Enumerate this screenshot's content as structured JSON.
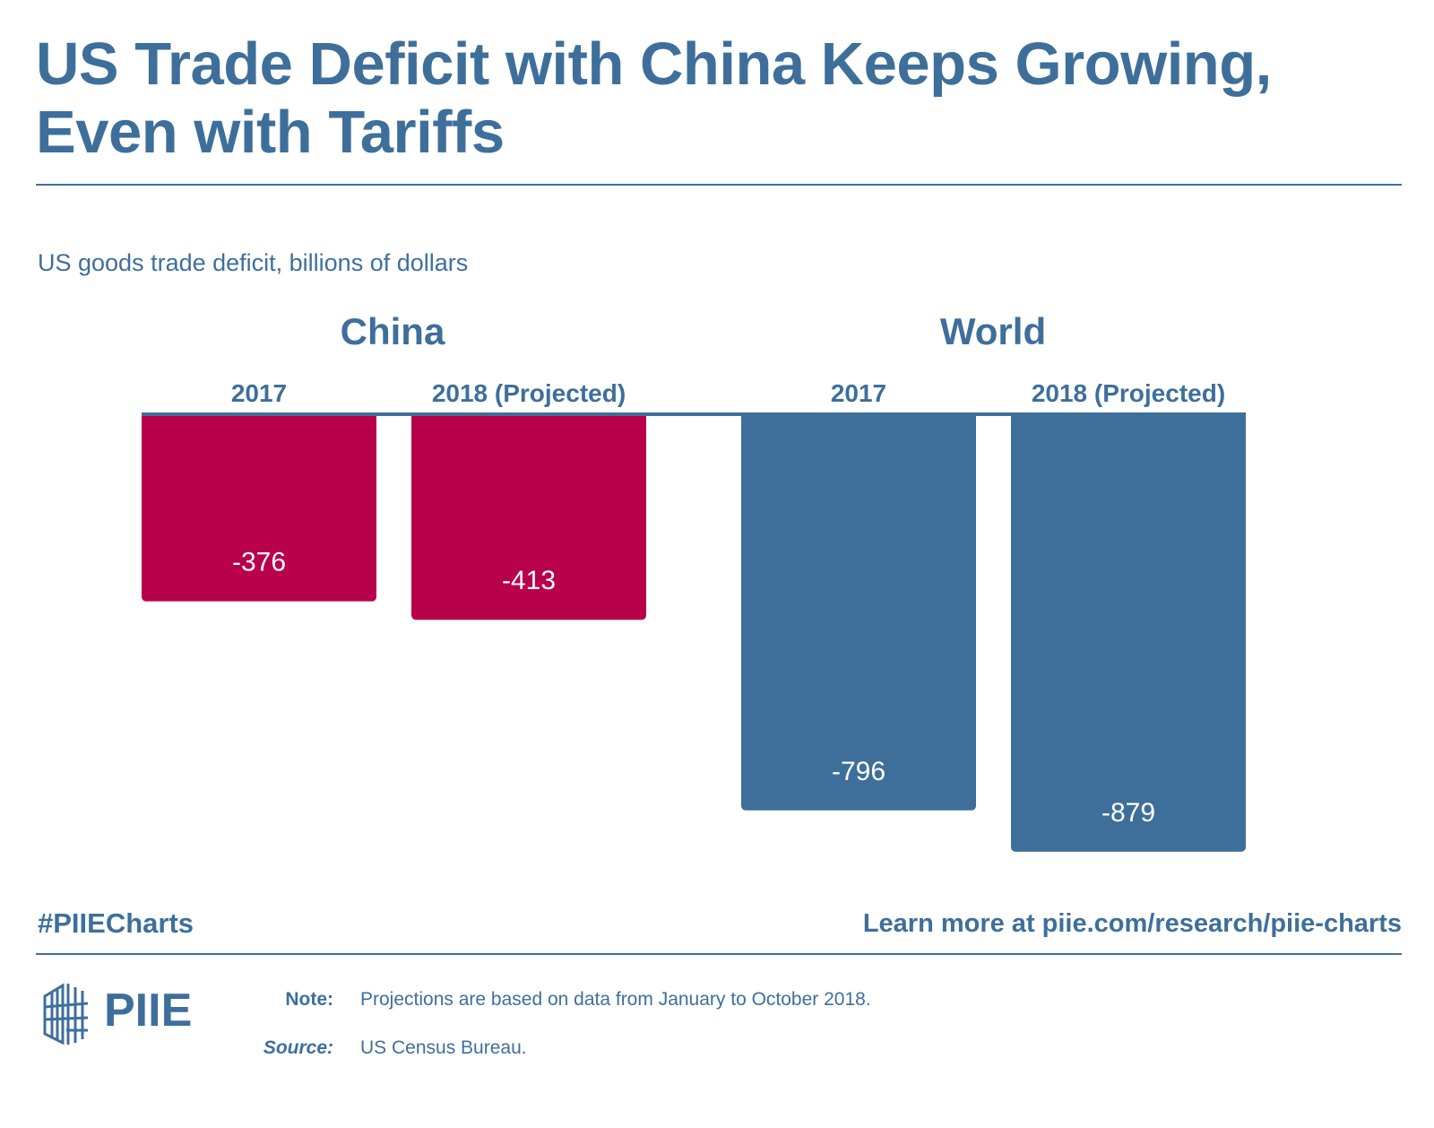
{
  "header": {
    "title": "US Trade Deficit with China Keeps Growing, Even with Tariffs"
  },
  "colors": {
    "primary_blue": "#3e6f9b",
    "china_red": "#b8004b",
    "label_white": "#ffffff"
  },
  "chart_data": {
    "type": "bar",
    "subtitle": "US goods trade deficit, billions of dollars",
    "groups": [
      {
        "name": "China",
        "color": "#b8004b",
        "categories": [
          "2017",
          "2018 (Projected)"
        ],
        "values": [
          -376,
          -413
        ],
        "labels": [
          "-376",
          "-413"
        ]
      },
      {
        "name": "World",
        "color": "#3e6f9b",
        "categories": [
          "2017",
          "2018 (Projected)"
        ],
        "values": [
          -796,
          -879
        ],
        "labels": [
          "-796",
          "-879"
        ]
      }
    ],
    "ylim": [
      -900,
      0
    ],
    "grid": false,
    "legend": "none"
  },
  "footer": {
    "hashtag": "#PIIECharts",
    "link_text": "Learn more at piie.com/research/piie-charts",
    "logo_text": "PIIE",
    "note_label": "Note:",
    "note_text": "Projections are based on data from January to October 2018.",
    "source_label": "Source:",
    "source_text": "US Census Bureau."
  }
}
